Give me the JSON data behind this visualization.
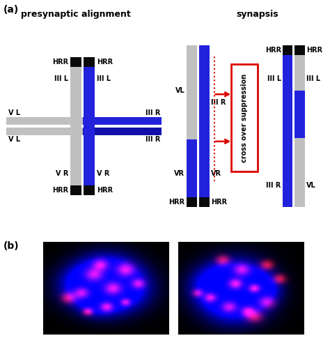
{
  "bg_color": "#ffffff",
  "panel_a_label": "(a)",
  "panel_b_label": "(b)",
  "title_left": "presynaptic alignment",
  "title_right": "synapsis",
  "gray_color": "#c0c0c0",
  "blue_color": "#2222dd",
  "dark_blue_color": "#1111aa",
  "black_color": "#0a0a0a",
  "red_color": "#dd0000",
  "text_color": "#000000",
  "crossover_text": "cross over suppression"
}
